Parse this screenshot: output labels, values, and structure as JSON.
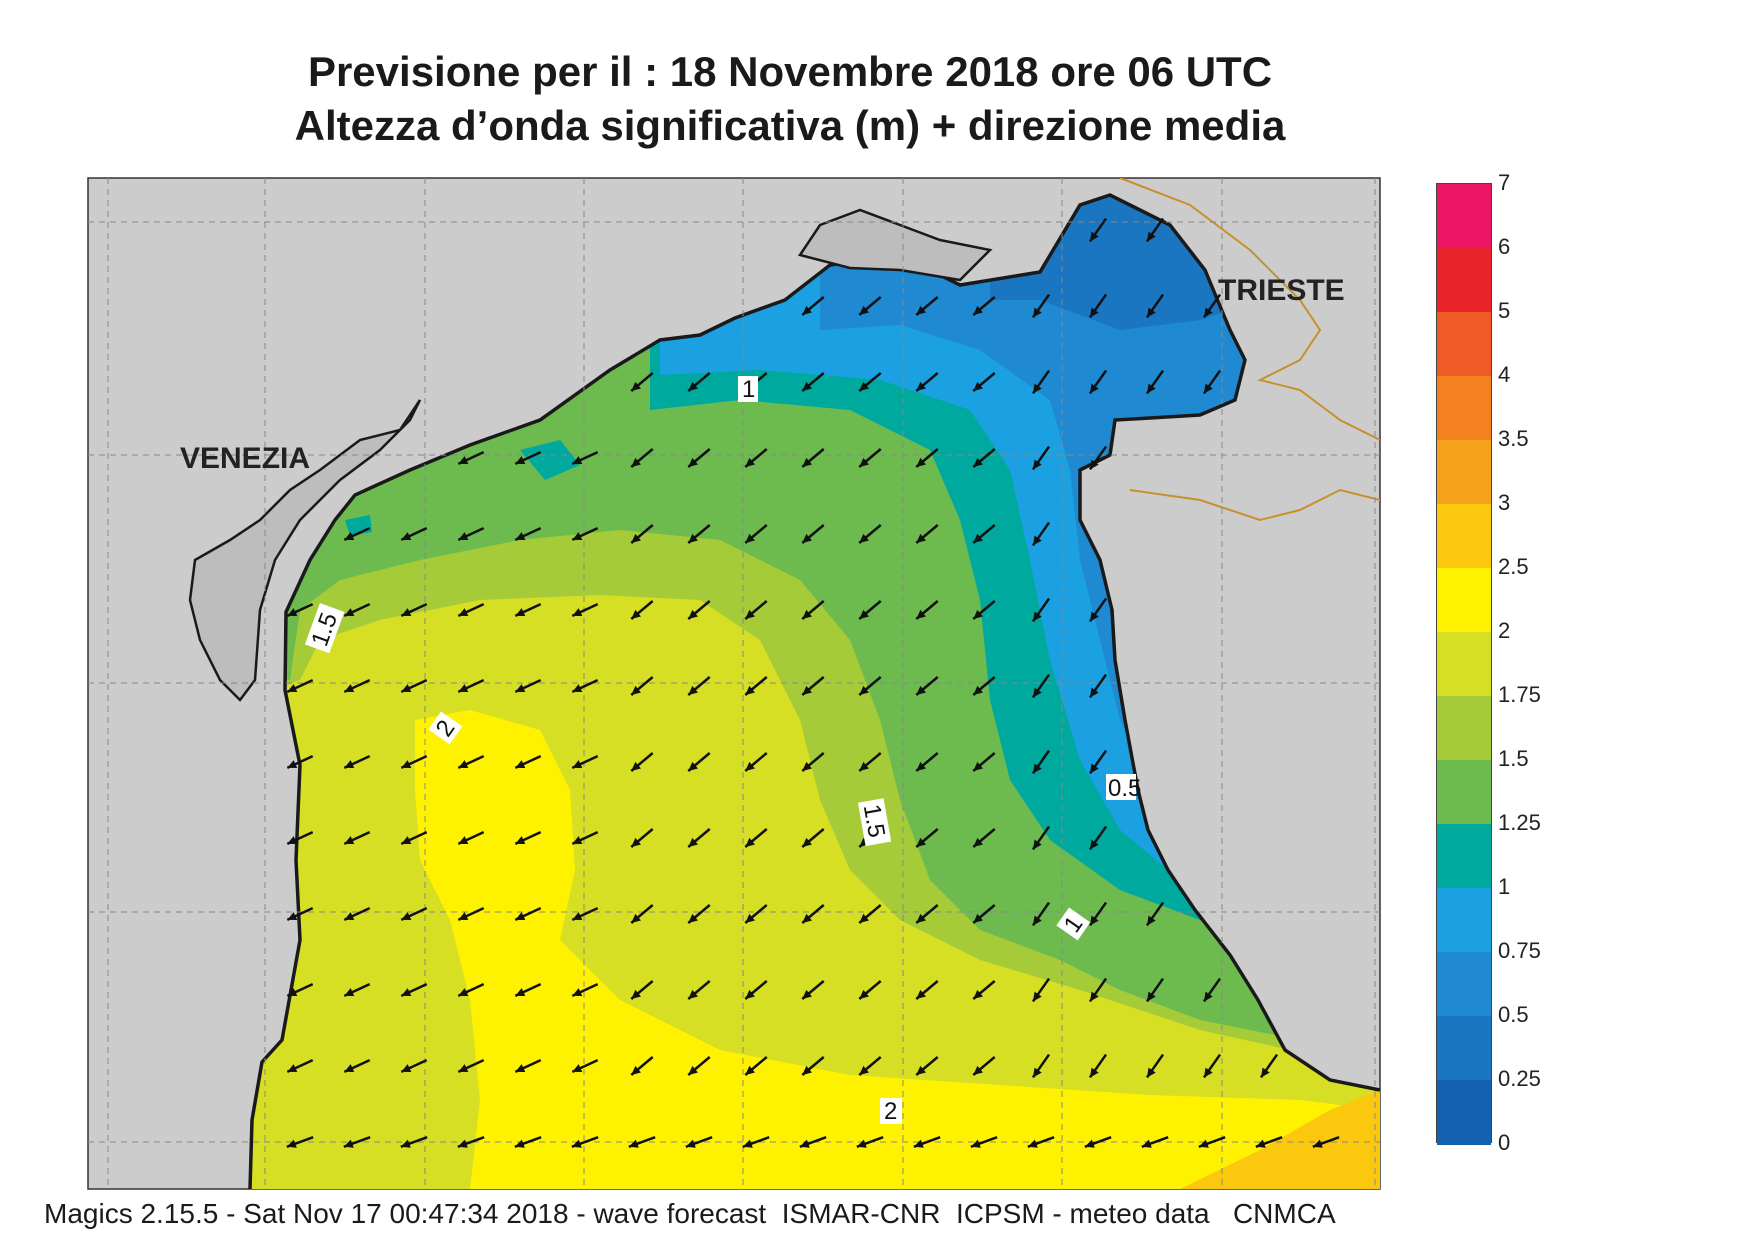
{
  "title_line1": "Previsione per il  :  18 Novembre  2018   ore 06 UTC",
  "title_line2": "Altezza d’onda significativa (m) + direzione media",
  "places": {
    "venezia": "VENEZIA",
    "trieste": "TRIESTE"
  },
  "contour_labels": {
    "c1_north": "1",
    "c15_west": "1.5",
    "c2_west": "2",
    "c15_center": "1.5",
    "c1_east": "1",
    "c05_east": "0.5",
    "c2_south": "2"
  },
  "colorbar": {
    "ticks": [
      "7",
      "6",
      "5",
      "4",
      "3.5",
      "3",
      "2.5",
      "2",
      "1.75",
      "1.5",
      "1.25",
      "1",
      "0.75",
      "0.5",
      "0.25",
      "0"
    ],
    "colors": [
      "#ec1564",
      "#e8232a",
      "#ef5a26",
      "#f58220",
      "#f7a21b",
      "#fbc80e",
      "#fff200",
      "#d6df24",
      "#a6cb39",
      "#6dbb4f",
      "#00a99d",
      "#1ba0e2",
      "#1f8ad1",
      "#1a76c1",
      "#1360ae"
    ]
  },
  "footer": "Magics 2.15.5 - Sat Nov 17 00:47:34 2018 - wave forecast  ISMAR-CNR  ICPSM - meteo data   CNMCA",
  "wave_direction": "arrows pointing south-west (mean wave direction)"
}
